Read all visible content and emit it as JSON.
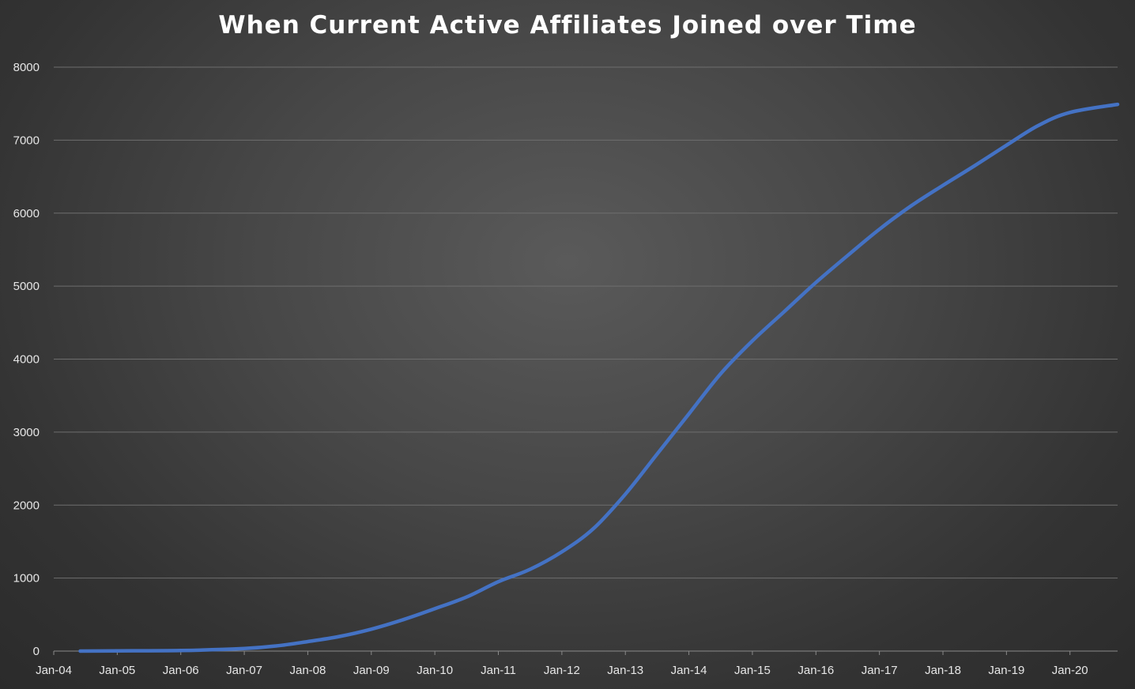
{
  "chart_data": {
    "type": "line",
    "title": "When Current Active Affiliates Joined over Time",
    "xlabel": "",
    "ylabel": "",
    "ylim": [
      0,
      8000
    ],
    "yticks": [
      "0",
      "1000",
      "2000",
      "3000",
      "4000",
      "5000",
      "6000",
      "7000",
      "8000"
    ],
    "xticks": [
      "Jan-04",
      "Jan-05",
      "Jan-06",
      "Jan-07",
      "Jan-08",
      "Jan-09",
      "Jan-10",
      "Jan-11",
      "Jan-12",
      "Jan-13",
      "Jan-14",
      "Jan-15",
      "Jan-16",
      "Jan-17",
      "Jan-18",
      "Jan-19",
      "Jan-20"
    ],
    "xlim": [
      "2004-01",
      "2020-10"
    ],
    "grid": true,
    "legend": "none",
    "series": [
      {
        "color": "#4472c4",
        "points": [
          [
            "2004-06",
            0
          ],
          [
            "2005-01",
            3
          ],
          [
            "2006-01",
            8
          ],
          [
            "2007-01",
            35
          ],
          [
            "2007-07",
            70
          ],
          [
            "2008-01",
            130
          ],
          [
            "2008-07",
            200
          ],
          [
            "2009-01",
            300
          ],
          [
            "2009-07",
            430
          ],
          [
            "2010-01",
            580
          ],
          [
            "2010-07",
            740
          ],
          [
            "2011-01",
            950
          ],
          [
            "2011-07",
            1120
          ],
          [
            "2012-01",
            1360
          ],
          [
            "2012-07",
            1680
          ],
          [
            "2013-01",
            2150
          ],
          [
            "2013-07",
            2700
          ],
          [
            "2014-01",
            3250
          ],
          [
            "2014-07",
            3800
          ],
          [
            "2015-01",
            4250
          ],
          [
            "2015-07",
            4650
          ],
          [
            "2016-01",
            5050
          ],
          [
            "2016-07",
            5420
          ],
          [
            "2017-01",
            5780
          ],
          [
            "2017-07",
            6100
          ],
          [
            "2018-01",
            6380
          ],
          [
            "2018-07",
            6650
          ],
          [
            "2019-01",
            6930
          ],
          [
            "2019-07",
            7200
          ],
          [
            "2020-01",
            7380
          ],
          [
            "2020-10",
            7490
          ]
        ]
      }
    ]
  }
}
